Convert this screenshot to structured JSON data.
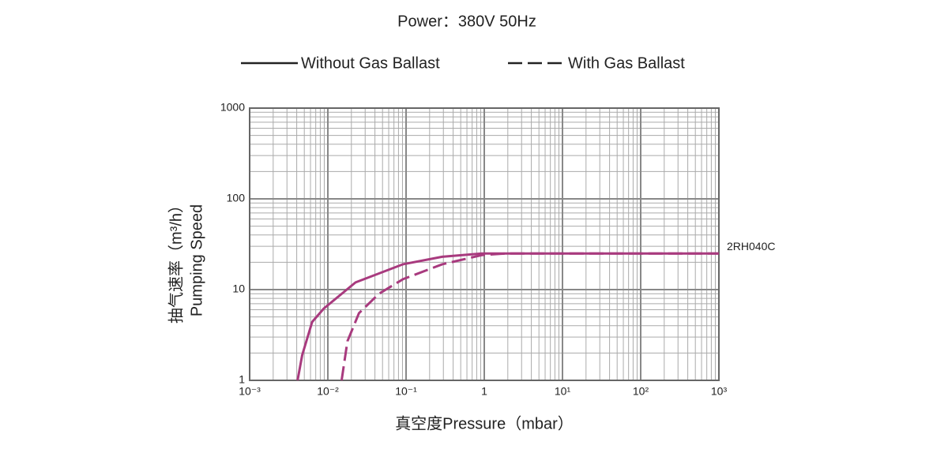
{
  "chart_data": {
    "type": "line",
    "title": "Power：380V 50Hz",
    "xlabel": "真空度Pressure（mbar）",
    "ylabel": [
      "抽气速率（m³/h）",
      "Pumping Speed"
    ],
    "annotation": "2RH040C",
    "xscale": "log",
    "yscale": "log",
    "grid": true,
    "minor_grid": true,
    "xlim": [
      0.001,
      1000
    ],
    "ylim": [
      1,
      1000
    ],
    "xticks": [
      {
        "value": 0.001,
        "label": "10⁻³"
      },
      {
        "value": 0.01,
        "label": "10⁻²"
      },
      {
        "value": 0.1,
        "label": "10⁻¹"
      },
      1,
      {
        "value": 10,
        "label": "10¹"
      },
      {
        "value": 100,
        "label": "10²"
      },
      {
        "value": 1000,
        "label": "10³"
      }
    ],
    "yticks": [
      1,
      10,
      100,
      1000
    ],
    "series": [
      {
        "name": "Without Gas Ballast",
        "color": "#a83a7e",
        "line_style": "solid",
        "x": [
          0.0041,
          0.0047,
          0.0063,
          0.0089,
          0.0226,
          0.091,
          0.29,
          0.93,
          1000
        ],
        "values": [
          1,
          1.9,
          4.4,
          6.2,
          12,
          19,
          23,
          25,
          25
        ]
      },
      {
        "name": "With Gas Ballast",
        "color": "#a83a7e",
        "line_style": "dashed",
        "x": [
          0.015,
          0.0178,
          0.025,
          0.045,
          0.091,
          0.29,
          0.93,
          1.9,
          1000
        ],
        "values": [
          1,
          2.7,
          5.5,
          9,
          13,
          19,
          24,
          25,
          25
        ]
      }
    ]
  }
}
